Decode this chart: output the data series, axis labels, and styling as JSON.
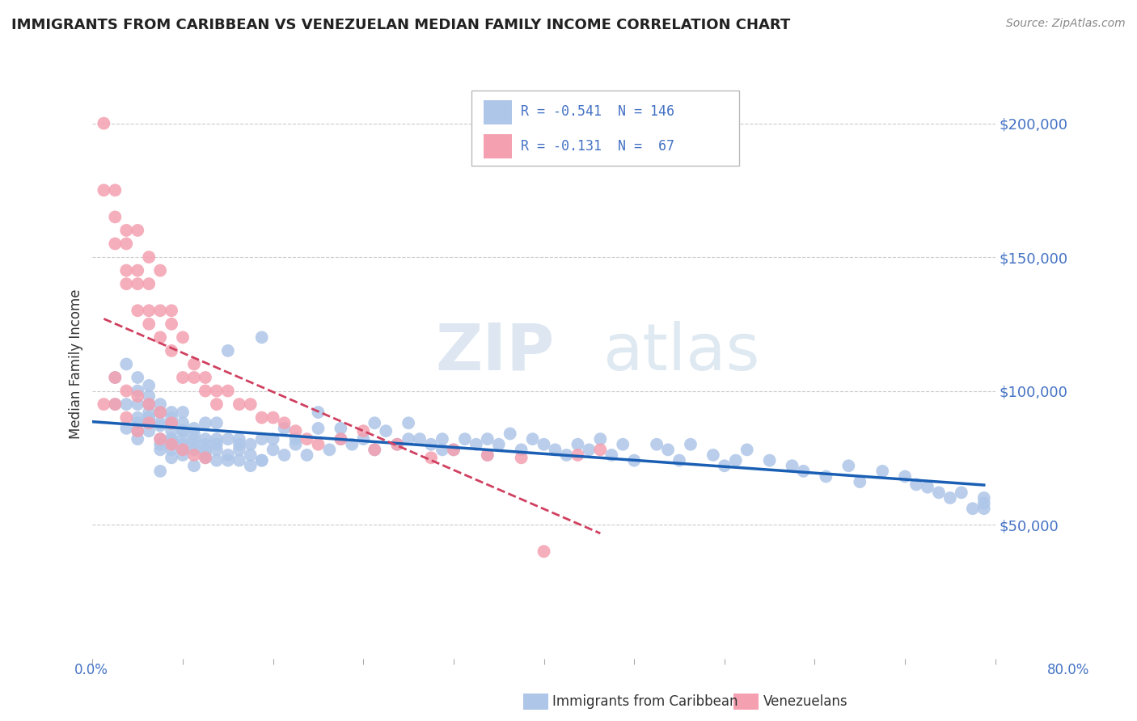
{
  "title": "IMMIGRANTS FROM CARIBBEAN VS VENEZUELAN MEDIAN FAMILY INCOME CORRELATION CHART",
  "source": "Source: ZipAtlas.com",
  "ylabel": "Median Family Income",
  "ytick_labels": [
    "$50,000",
    "$100,000",
    "$150,000",
    "$200,000"
  ],
  "ytick_values": [
    50000,
    100000,
    150000,
    200000
  ],
  "xlim": [
    0.0,
    0.8
  ],
  "ylim": [
    0,
    220000
  ],
  "caribbean_color": "#aec6e8",
  "venezuelan_color": "#f4a0b0",
  "caribbean_line_color": "#1a5fb4",
  "venezuelan_line_color": "#d04060",
  "background_color": "#ffffff",
  "caribbean_x": [
    0.02,
    0.03,
    0.03,
    0.04,
    0.04,
    0.04,
    0.04,
    0.04,
    0.05,
    0.05,
    0.05,
    0.05,
    0.05,
    0.05,
    0.05,
    0.06,
    0.06,
    0.06,
    0.06,
    0.06,
    0.06,
    0.07,
    0.07,
    0.07,
    0.07,
    0.07,
    0.07,
    0.07,
    0.08,
    0.08,
    0.08,
    0.08,
    0.08,
    0.08,
    0.09,
    0.09,
    0.09,
    0.09,
    0.09,
    0.1,
    0.1,
    0.1,
    0.1,
    0.1,
    0.11,
    0.11,
    0.11,
    0.11,
    0.12,
    0.12,
    0.12,
    0.13,
    0.13,
    0.13,
    0.14,
    0.14,
    0.15,
    0.15,
    0.15,
    0.16,
    0.16,
    0.17,
    0.17,
    0.18,
    0.18,
    0.19,
    0.2,
    0.2,
    0.21,
    0.22,
    0.22,
    0.23,
    0.24,
    0.25,
    0.25,
    0.26,
    0.27,
    0.28,
    0.28,
    0.29,
    0.3,
    0.31,
    0.31,
    0.32,
    0.33,
    0.34,
    0.35,
    0.35,
    0.36,
    0.37,
    0.38,
    0.39,
    0.4,
    0.41,
    0.42,
    0.43,
    0.44,
    0.45,
    0.46,
    0.47,
    0.48,
    0.5,
    0.51,
    0.52,
    0.53,
    0.55,
    0.56,
    0.57,
    0.58,
    0.6,
    0.62,
    0.63,
    0.65,
    0.67,
    0.68,
    0.7,
    0.72,
    0.73,
    0.74,
    0.75,
    0.76,
    0.77,
    0.78,
    0.79,
    0.79,
    0.79,
    0.02,
    0.03,
    0.04,
    0.04,
    0.05,
    0.06,
    0.07,
    0.08,
    0.09,
    0.1,
    0.11,
    0.12,
    0.13,
    0.14,
    0.15,
    0.06,
    0.07,
    0.08,
    0.04,
    0.05
  ],
  "caribbean_y": [
    105000,
    110000,
    95000,
    100000,
    90000,
    105000,
    85000,
    95000,
    95000,
    88000,
    102000,
    85000,
    92000,
    90000,
    98000,
    88000,
    82000,
    92000,
    87000,
    95000,
    80000,
    85000,
    90000,
    78000,
    82000,
    88000,
    92000,
    75000,
    88000,
    80000,
    85000,
    78000,
    92000,
    82000,
    80000,
    78000,
    82000,
    86000,
    72000,
    78000,
    82000,
    76000,
    88000,
    80000,
    78000,
    82000,
    74000,
    88000,
    82000,
    76000,
    115000,
    80000,
    74000,
    82000,
    76000,
    80000,
    120000,
    82000,
    74000,
    78000,
    82000,
    86000,
    76000,
    80000,
    82000,
    76000,
    86000,
    92000,
    78000,
    82000,
    86000,
    80000,
    82000,
    88000,
    78000,
    85000,
    80000,
    88000,
    82000,
    82000,
    80000,
    78000,
    82000,
    78000,
    82000,
    80000,
    82000,
    76000,
    80000,
    84000,
    78000,
    82000,
    80000,
    78000,
    76000,
    80000,
    78000,
    82000,
    76000,
    80000,
    74000,
    80000,
    78000,
    74000,
    80000,
    76000,
    72000,
    74000,
    78000,
    74000,
    72000,
    70000,
    68000,
    72000,
    66000,
    70000,
    68000,
    65000,
    64000,
    62000,
    60000,
    62000,
    56000,
    58000,
    60000,
    56000,
    95000,
    86000,
    88000,
    82000,
    90000,
    78000,
    80000,
    76000,
    84000,
    75000,
    80000,
    74000,
    78000,
    72000,
    74000,
    70000,
    82000,
    85000
  ],
  "venezuelan_x": [
    0.01,
    0.01,
    0.02,
    0.02,
    0.02,
    0.03,
    0.03,
    0.03,
    0.03,
    0.04,
    0.04,
    0.04,
    0.04,
    0.05,
    0.05,
    0.05,
    0.05,
    0.06,
    0.06,
    0.06,
    0.07,
    0.07,
    0.07,
    0.08,
    0.08,
    0.09,
    0.09,
    0.1,
    0.1,
    0.11,
    0.11,
    0.12,
    0.13,
    0.14,
    0.15,
    0.16,
    0.17,
    0.18,
    0.19,
    0.2,
    0.22,
    0.24,
    0.25,
    0.27,
    0.3,
    0.32,
    0.35,
    0.38,
    0.4,
    0.43,
    0.45,
    0.01,
    0.02,
    0.03,
    0.04,
    0.05,
    0.06,
    0.07,
    0.08,
    0.09,
    0.1,
    0.02,
    0.03,
    0.04,
    0.05,
    0.06,
    0.07
  ],
  "venezuelan_y": [
    200000,
    175000,
    175000,
    155000,
    165000,
    140000,
    155000,
    145000,
    160000,
    145000,
    160000,
    140000,
    130000,
    130000,
    140000,
    150000,
    125000,
    145000,
    130000,
    120000,
    125000,
    130000,
    115000,
    120000,
    105000,
    110000,
    105000,
    105000,
    100000,
    100000,
    95000,
    100000,
    95000,
    95000,
    90000,
    90000,
    88000,
    85000,
    82000,
    80000,
    82000,
    85000,
    78000,
    80000,
    75000,
    78000,
    76000,
    75000,
    40000,
    76000,
    78000,
    95000,
    95000,
    90000,
    85000,
    88000,
    82000,
    80000,
    78000,
    76000,
    75000,
    105000,
    100000,
    98000,
    95000,
    92000,
    88000
  ]
}
